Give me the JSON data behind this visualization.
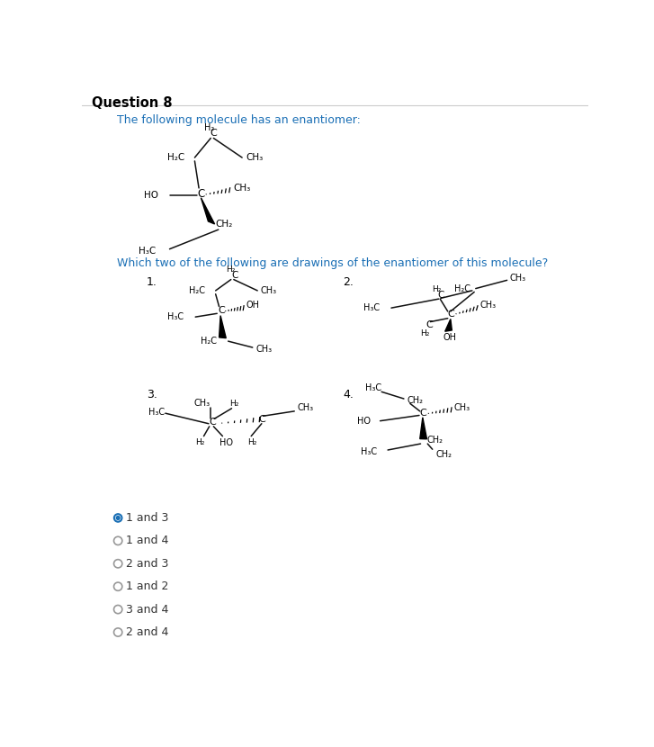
{
  "title": "Question 8",
  "title_color": "#000000",
  "bg_color": "#ffffff",
  "intro_text": "The following molecule has an enantiomer:",
  "intro_color": "#1a6fb5",
  "question_text": "Which two of the following are drawings of the enantiomer of this molecule?",
  "question_color": "#1a6fb5",
  "answer_options": [
    "1 and 3",
    "1 and 4",
    "2 and 3",
    "1 and 2",
    "3 and 4",
    "2 and 4"
  ],
  "selected_answer": 0,
  "radio_color_selected": "#1a6fb5",
  "radio_color_unselected": "#aaaaaa",
  "text_color": "#333333",
  "line_color": "#111111",
  "font_size_label": 8.5,
  "font_size_sub": 7.0
}
